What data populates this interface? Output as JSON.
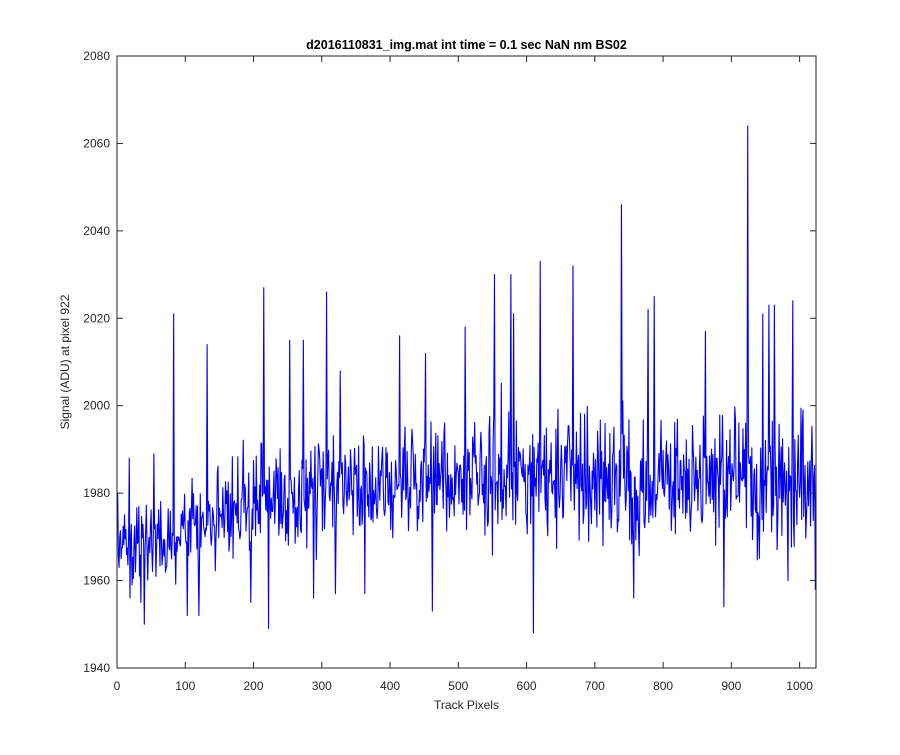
{
  "chart_data": {
    "type": "line",
    "title": "d2016110831_img.mat int time = 0.1 sec  NaN nm BS02",
    "xlabel": "Track Pixels",
    "ylabel": "Signal (ADU) at pixel 922",
    "xlim": [
      0,
      1024
    ],
    "ylim": [
      1940,
      2080
    ],
    "xticks": [
      0,
      100,
      200,
      300,
      400,
      500,
      600,
      700,
      800,
      900,
      1000
    ],
    "yticks": [
      1940,
      1960,
      1980,
      2000,
      2020,
      2040,
      2060,
      2080
    ],
    "grid": false,
    "line_color": "#0000ff",
    "series": [
      {
        "x_start": 1,
        "x_step": 1,
        "count": 1024,
        "baseline": [
          [
            1,
            1967
          ],
          [
            100,
            1971
          ],
          [
            200,
            1978
          ],
          [
            300,
            1981
          ],
          [
            400,
            1983
          ],
          [
            500,
            1984
          ],
          [
            600,
            1983
          ],
          [
            700,
            1984
          ],
          [
            800,
            1982
          ],
          [
            900,
            1983
          ],
          [
            1024,
            1981
          ]
        ],
        "spread": [
          [
            1,
            6
          ],
          [
            200,
            9
          ],
          [
            500,
            10
          ],
          [
            1024,
            11
          ]
        ],
        "peaks": [
          [
            1,
            1980
          ],
          [
            3,
            1963
          ],
          [
            18,
            1988
          ],
          [
            22,
            1959
          ],
          [
            35,
            1955
          ],
          [
            40,
            1950
          ],
          [
            54,
            1989
          ],
          [
            83,
            2021
          ],
          [
            103,
            1952
          ],
          [
            120,
            1952
          ],
          [
            132,
            2014
          ],
          [
            196,
            1955
          ],
          [
            215,
            2027
          ],
          [
            222,
            1949
          ],
          [
            253,
            2015
          ],
          [
            273,
            2015
          ],
          [
            288,
            1956
          ],
          [
            307,
            2026
          ],
          [
            320,
            1957
          ],
          [
            327,
            2008
          ],
          [
            363,
            1957
          ],
          [
            414,
            2016
          ],
          [
            452,
            2012
          ],
          [
            462,
            1953
          ],
          [
            510,
            2018
          ],
          [
            553,
            2030
          ],
          [
            577,
            2030
          ],
          [
            581,
            2021
          ],
          [
            610,
            1948
          ],
          [
            620,
            2033
          ],
          [
            668,
            2032
          ],
          [
            739,
            2046
          ],
          [
            757,
            1956
          ],
          [
            778,
            2022
          ],
          [
            787,
            2025
          ],
          [
            862,
            2017
          ],
          [
            889,
            1954
          ],
          [
            924,
            2064
          ],
          [
            946,
            2021
          ],
          [
            955,
            2023
          ],
          [
            963,
            2023
          ],
          [
            983,
            1960
          ],
          [
            990,
            2024
          ],
          [
            1023,
            1958
          ]
        ]
      }
    ]
  }
}
